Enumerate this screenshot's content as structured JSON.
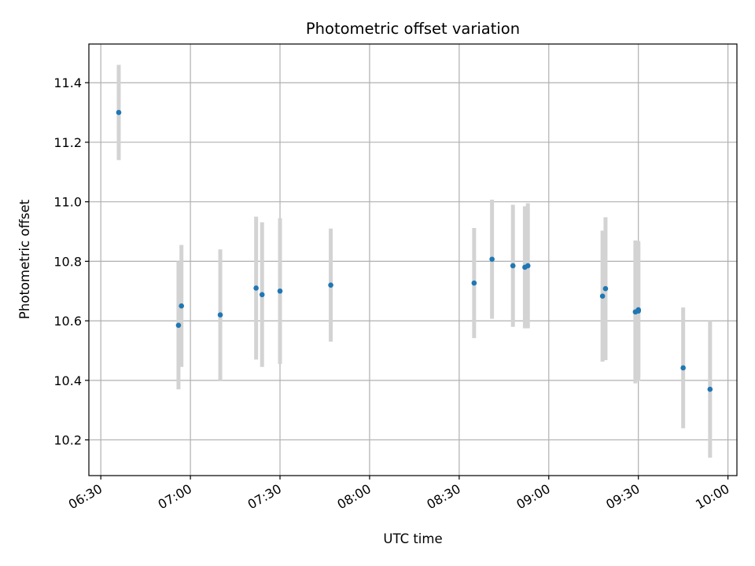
{
  "chart_data": {
    "type": "scatter",
    "title": "Photometric offset variation",
    "xlabel": "UTC time",
    "ylabel": "Photometric offset",
    "x_ticks": [
      "06:30",
      "07:00",
      "07:30",
      "08:00",
      "08:30",
      "09:00",
      "09:30",
      "10:00"
    ],
    "y_ticks": [
      "10.2",
      "10.4",
      "10.6",
      "10.8",
      "11.0",
      "11.2",
      "11.4"
    ],
    "xlim": [
      "06:26",
      "10:03"
    ],
    "ylim": [
      10.08,
      11.53
    ],
    "grid": true,
    "colors": {
      "point": "#1f77b4",
      "errorbar": "#d3d3d3",
      "grid": "#b0b0b0"
    },
    "points": [
      {
        "time": "06:36",
        "y": 11.3,
        "yerr": 0.16
      },
      {
        "time": "06:56",
        "y": 10.585,
        "yerr": 0.215
      },
      {
        "time": "06:57",
        "y": 10.65,
        "yerr": 0.205
      },
      {
        "time": "07:10",
        "y": 10.62,
        "yerr": 0.22
      },
      {
        "time": "07:22",
        "y": 10.71,
        "yerr": 0.24
      },
      {
        "time": "07:24",
        "y": 10.688,
        "yerr": 0.243
      },
      {
        "time": "07:30",
        "y": 10.7,
        "yerr": 0.245
      },
      {
        "time": "07:47",
        "y": 10.72,
        "yerr": 0.19
      },
      {
        "time": "08:35",
        "y": 10.727,
        "yerr": 0.185
      },
      {
        "time": "08:41",
        "y": 10.807,
        "yerr": 0.2
      },
      {
        "time": "08:48",
        "y": 10.785,
        "yerr": 0.205
      },
      {
        "time": "08:52",
        "y": 10.78,
        "yerr": 0.205
      },
      {
        "time": "08:53",
        "y": 10.785,
        "yerr": 0.21
      },
      {
        "time": "09:18",
        "y": 10.683,
        "yerr": 0.22
      },
      {
        "time": "09:19",
        "y": 10.708,
        "yerr": 0.24
      },
      {
        "time": "09:29",
        "y": 10.63,
        "yerr": 0.24
      },
      {
        "time": "09:30",
        "y": 10.633,
        "yerr": 0.235
      },
      {
        "time": "09:30",
        "y": 10.637,
        "yerr": 0.225
      },
      {
        "time": "09:45",
        "y": 10.442,
        "yerr": 0.203
      },
      {
        "time": "09:54",
        "y": 10.37,
        "yerr": 0.23
      }
    ]
  }
}
